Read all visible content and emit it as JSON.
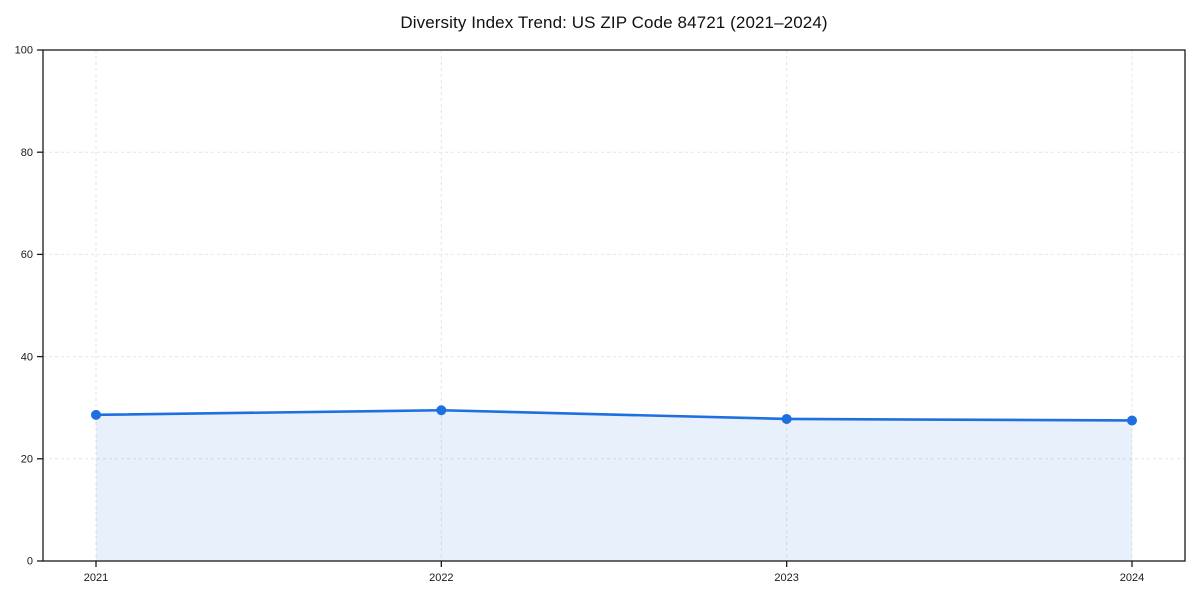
{
  "window": {
    "background": "#ffffff"
  },
  "chart_data": {
    "type": "line",
    "title": "Diversity Index Trend: US ZIP Code 84721 (2021–2024)",
    "categories": [
      "2021",
      "2022",
      "2023",
      "2024"
    ],
    "values": [
      28.6,
      29.5,
      27.8,
      27.5
    ],
    "xlabel": "",
    "ylabel": "",
    "ylim": [
      0,
      100
    ],
    "yticks": [
      0,
      20,
      40,
      60,
      80,
      100
    ],
    "grid": true,
    "grid_style": "dashed",
    "area_fill": true,
    "legend_position": "none",
    "colors": {
      "line": "#1e6fe0",
      "marker": "#1e6fe0",
      "area": "#1e6fe0",
      "area_opacity": 0.1,
      "grid": "#e4e4e4",
      "spine": "#1a1a1a",
      "tick_label": "#1a1a1a",
      "title": "#111111"
    }
  }
}
